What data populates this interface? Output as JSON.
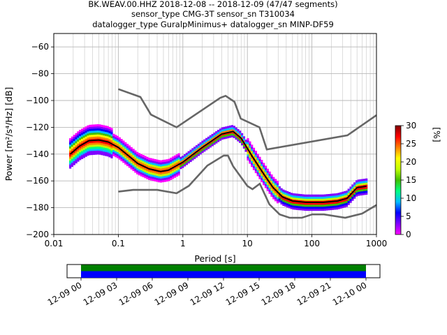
{
  "title_lines": [
    "BK.WEAV.00.HHZ   2018-12-08 -- 2018-12-09  (47/47 segments)",
    "sensor_type CMG-3T sensor_sn T310034",
    "datalogger_type GuralpMinimus+ datalogger_sn MINP-DF59"
  ],
  "chart_data": {
    "type": "heatmap",
    "xlabel": "Period [s]",
    "ylabel": "Power [m²/s⁴/Hz] [dB]",
    "xscale": "log",
    "xlim": [
      0.01,
      1000
    ],
    "ylim": [
      -200,
      -50
    ],
    "x_ticks": [
      0.01,
      0.1,
      1,
      10,
      100,
      1000
    ],
    "x_tick_labels": [
      "0.01",
      "0.1",
      "1",
      "10",
      "100",
      "1000"
    ],
    "y_ticks": [
      -200,
      -180,
      -160,
      -140,
      -120,
      -100,
      -80,
      -60
    ],
    "y_tick_labels": [
      "−200",
      "−180",
      "−160",
      "−140",
      "−120",
      "−100",
      "−80",
      "−60"
    ],
    "grid": true,
    "colorbar": {
      "label": "[%]",
      "ticks": [
        0,
        5,
        10,
        15,
        20,
        25,
        30
      ],
      "tick_labels": [
        "0",
        "5",
        "10",
        "15",
        "20",
        "25",
        "30"
      ],
      "range": [
        0,
        30
      ],
      "colormap": [
        "#ff00ff",
        "#7f00ff",
        "#0000ff",
        "#00bfff",
        "#00ff80",
        "#40c000",
        "#c0ff00",
        "#ffff00",
        "#ff8000",
        "#ff0000",
        "#800000"
      ]
    },
    "series": [
      {
        "role": "high_noise_model",
        "points": [
          [
            0.1,
            -91.5
          ],
          [
            0.22,
            -97.4
          ],
          [
            0.32,
            -110.5
          ],
          [
            0.8,
            -120
          ],
          [
            3.8,
            -98
          ],
          [
            4.6,
            -96.5
          ],
          [
            6.3,
            -101
          ],
          [
            7.9,
            -113.5
          ],
          [
            15.4,
            -120
          ],
          [
            20,
            -136.5
          ],
          [
            354.8,
            -126
          ],
          [
            1000,
            -111
          ]
        ]
      },
      {
        "role": "low_noise_model",
        "points": [
          [
            0.1,
            -168
          ],
          [
            0.17,
            -166.7
          ],
          [
            0.4,
            -166.7
          ],
          [
            0.8,
            -169.2
          ],
          [
            1.24,
            -163.7
          ],
          [
            2.4,
            -148.6
          ],
          [
            4.3,
            -141.1
          ],
          [
            5,
            -141.1
          ],
          [
            6,
            -149
          ],
          [
            10,
            -163.8
          ],
          [
            12,
            -166.2
          ],
          [
            15.6,
            -162.1
          ],
          [
            21.9,
            -177.5
          ],
          [
            31.6,
            -185
          ],
          [
            45,
            -187.5
          ],
          [
            70,
            -187.5
          ],
          [
            101,
            -185
          ],
          [
            154,
            -185
          ],
          [
            328,
            -187.5
          ],
          [
            600,
            -184.4
          ],
          [
            1000,
            -178
          ]
        ]
      },
      {
        "role": "mode_curve",
        "points": [
          [
            0.018,
            -140
          ],
          [
            0.025,
            -134
          ],
          [
            0.035,
            -130
          ],
          [
            0.05,
            -129.5
          ],
          [
            0.07,
            -131
          ],
          [
            0.1,
            -135
          ],
          [
            0.15,
            -142
          ],
          [
            0.2,
            -147
          ],
          [
            0.3,
            -151
          ],
          [
            0.45,
            -153
          ],
          [
            0.6,
            -152
          ],
          [
            1,
            -146
          ],
          [
            2,
            -135
          ],
          [
            4,
            -125
          ],
          [
            6,
            -123
          ],
          [
            8,
            -128
          ],
          [
            12,
            -142
          ],
          [
            18,
            -155
          ],
          [
            25,
            -165
          ],
          [
            35,
            -172
          ],
          [
            50,
            -175
          ],
          [
            80,
            -176
          ],
          [
            150,
            -176
          ],
          [
            250,
            -175
          ],
          [
            350,
            -173
          ],
          [
            400,
            -170
          ],
          [
            500,
            -165
          ],
          [
            700,
            -164
          ]
        ]
      }
    ],
    "time_axis": {
      "tick_labels": [
        "12-09 00",
        "12-09 03",
        "12-09 06",
        "12-09 09",
        "12-09 12",
        "12-09 15",
        "12-09 18",
        "12-09 21",
        "12-10 00"
      ],
      "colors": {
        "top_band": "#008000",
        "bottom_band": "#0000ff"
      }
    }
  }
}
